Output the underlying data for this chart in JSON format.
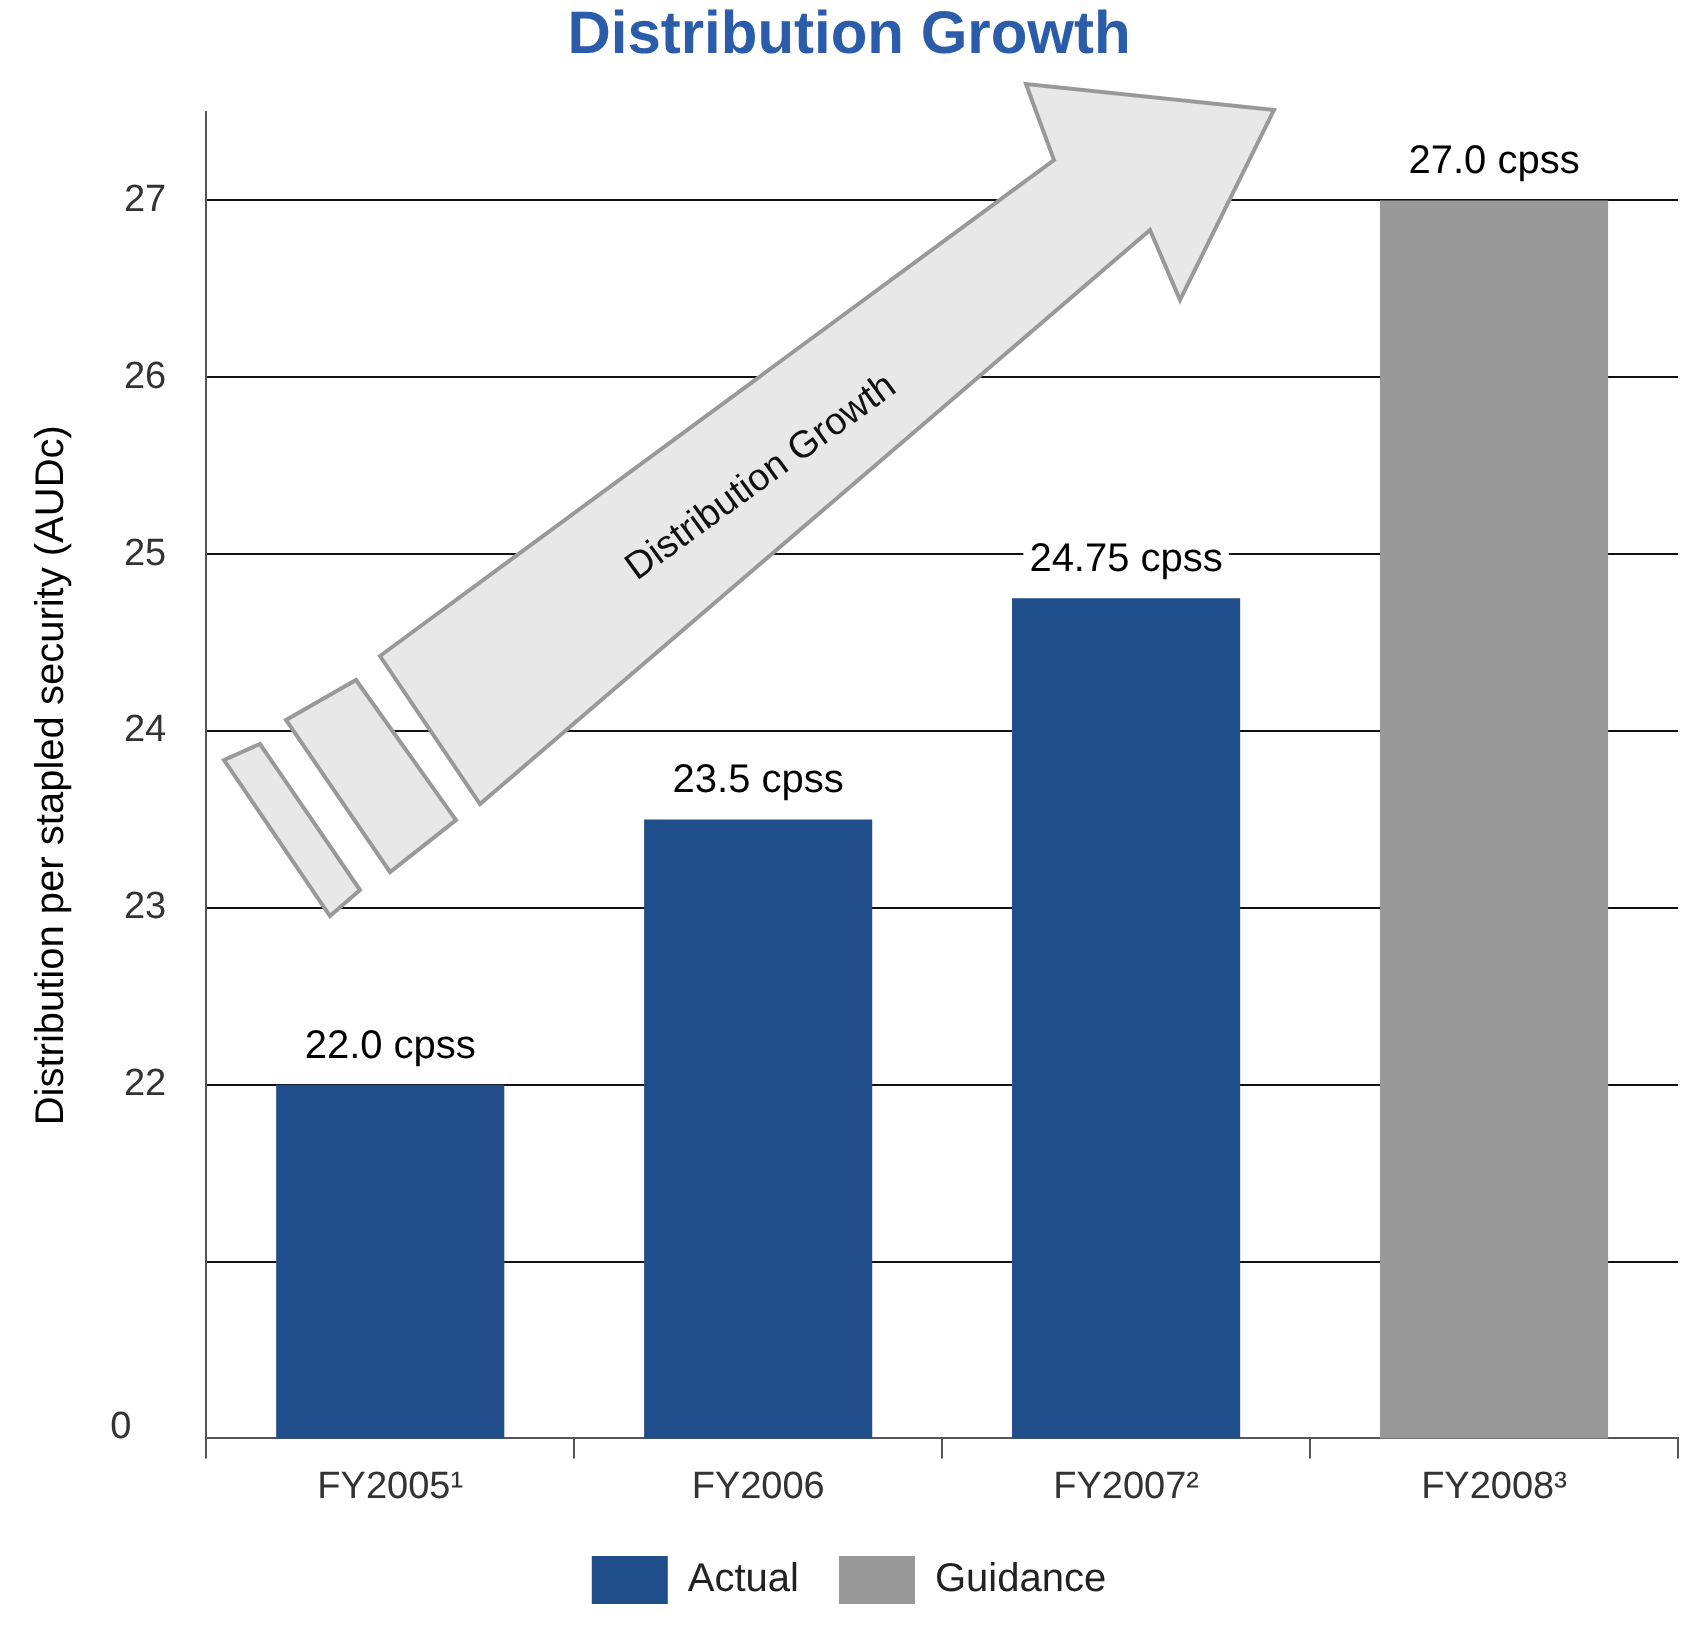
{
  "chart_data": {
    "type": "bar",
    "title": "Distribution Growth",
    "ylabel": "Distribution per stapled security (AUDc)",
    "categories": [
      "FY2005¹",
      "FY2006",
      "FY2007²",
      "FY2008³"
    ],
    "series": [
      {
        "name": "Actual",
        "color": "#1f4e8a",
        "values": [
          22.0,
          23.5,
          24.75,
          null
        ],
        "value_labels": [
          "22.0 cpss",
          "23.5 cpss",
          "24.75 cpss",
          null
        ]
      },
      {
        "name": "Guidance",
        "color": "#999999",
        "values": [
          null,
          null,
          null,
          27.0
        ],
        "value_labels": [
          null,
          null,
          null,
          "27.0 cpss"
        ]
      }
    ],
    "ylim": [
      20,
      27.5
    ],
    "yticks": [
      {
        "value": 21,
        "label": null
      },
      22,
      23,
      24,
      25,
      26,
      27
    ],
    "grid": "y",
    "legend": "bottom",
    "annotations": [
      "Distribution Growth",
      "0"
    ]
  }
}
